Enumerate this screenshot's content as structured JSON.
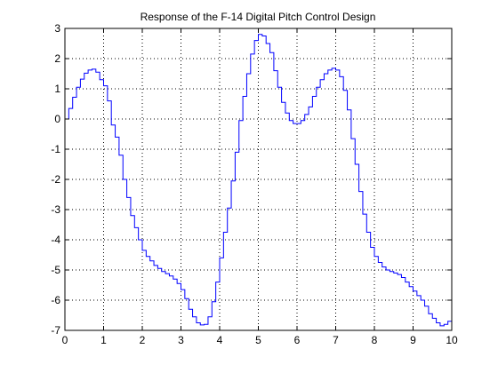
{
  "chart_data": {
    "type": "line",
    "step": true,
    "title": "Response of the F-14 Digital Pitch Control Design",
    "xlabel": "",
    "ylabel": "",
    "xlim": [
      0,
      10
    ],
    "ylim": [
      -7,
      3
    ],
    "xticks": [
      0,
      1,
      2,
      3,
      4,
      5,
      6,
      7,
      8,
      9,
      10
    ],
    "yticks": [
      3,
      2,
      1,
      0,
      -1,
      -2,
      -3,
      -4,
      -5,
      -6,
      -7
    ],
    "grid": true,
    "grid_style": "dotted",
    "series": [
      {
        "color": "#0000ff",
        "x": [
          0,
          0.1,
          0.2,
          0.3,
          0.4,
          0.5,
          0.6,
          0.7,
          0.8,
          0.9,
          1.0,
          1.1,
          1.2,
          1.3,
          1.4,
          1.5,
          1.6,
          1.7,
          1.8,
          1.9,
          2.0,
          2.1,
          2.2,
          2.3,
          2.4,
          2.5,
          2.6,
          2.7,
          2.8,
          2.9,
          3.0,
          3.1,
          3.2,
          3.3,
          3.4,
          3.5,
          3.6,
          3.7,
          3.8,
          3.9,
          4.0,
          4.1,
          4.2,
          4.3,
          4.4,
          4.5,
          4.6,
          4.7,
          4.8,
          4.9,
          5.0,
          5.1,
          5.2,
          5.3,
          5.4,
          5.5,
          5.6,
          5.7,
          5.8,
          5.9,
          6.0,
          6.1,
          6.2,
          6.3,
          6.4,
          6.5,
          6.6,
          6.7,
          6.8,
          6.9,
          7.0,
          7.1,
          7.2,
          7.3,
          7.4,
          7.5,
          7.6,
          7.7,
          7.8,
          7.9,
          8.0,
          8.1,
          8.2,
          8.3,
          8.4,
          8.5,
          8.6,
          8.7,
          8.8,
          8.9,
          9.0,
          9.1,
          9.2,
          9.3,
          9.4,
          9.5,
          9.6,
          9.7,
          9.8,
          9.9,
          10.0
        ],
        "y": [
          0,
          0.35,
          0.72,
          1.05,
          1.32,
          1.52,
          1.62,
          1.65,
          1.55,
          1.3,
          1.1,
          0.6,
          -0.2,
          -0.6,
          -1.2,
          -2.0,
          -2.6,
          -3.2,
          -3.6,
          -4.0,
          -4.35,
          -4.55,
          -4.7,
          -4.85,
          -4.95,
          -5.05,
          -5.12,
          -5.2,
          -5.3,
          -5.45,
          -5.65,
          -5.95,
          -6.3,
          -6.55,
          -6.75,
          -6.82,
          -6.8,
          -6.55,
          -6.05,
          -5.4,
          -4.6,
          -3.75,
          -2.95,
          -2.05,
          -1.1,
          -0.05,
          0.75,
          1.5,
          2.15,
          2.6,
          2.8,
          2.75,
          2.5,
          2.2,
          1.6,
          1.05,
          0.55,
          0.2,
          -0.05,
          -0.15,
          -0.15,
          -0.05,
          0.15,
          0.4,
          0.75,
          1.05,
          1.3,
          1.5,
          1.62,
          1.68,
          1.62,
          1.4,
          0.95,
          0.3,
          -0.65,
          -1.5,
          -2.4,
          -3.15,
          -3.75,
          -4.25,
          -4.55,
          -4.75,
          -4.9,
          -5.0,
          -5.05,
          -5.1,
          -5.15,
          -5.25,
          -5.4,
          -5.55,
          -5.7,
          -5.85,
          -6.0,
          -6.2,
          -6.45,
          -6.6,
          -6.75,
          -6.85,
          -6.8,
          -6.7,
          -6.5
        ]
      }
    ]
  }
}
